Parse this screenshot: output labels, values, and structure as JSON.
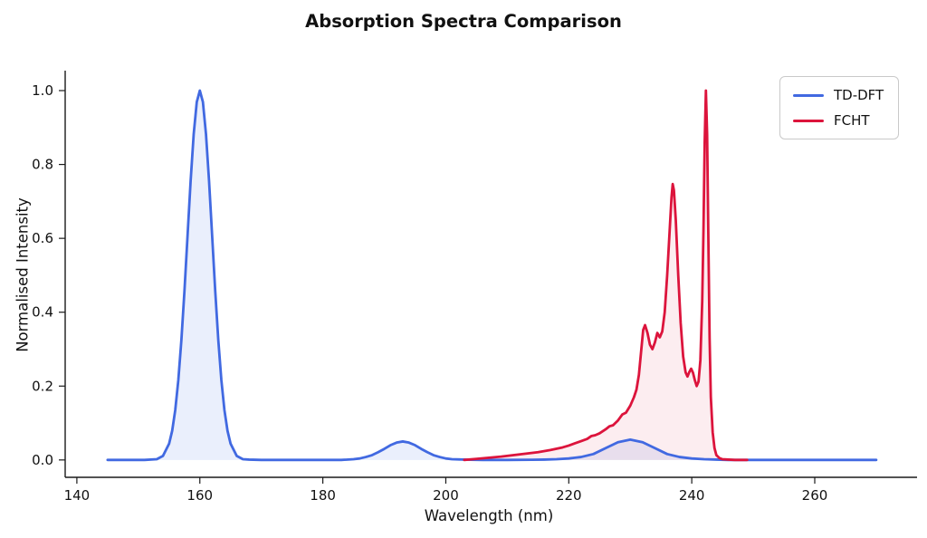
{
  "chart_data": {
    "type": "line",
    "title": "Absorption Spectra Comparison",
    "xlabel": "Wavelength (nm)",
    "ylabel": "Normalised Intensity",
    "xlim": [
      138.1,
      275.9
    ],
    "ylim": [
      -0.047,
      1.054
    ],
    "grid": false,
    "legend_position": "upper right",
    "x_ticks": [
      {
        "value": 140,
        "label": "140"
      },
      {
        "value": 160,
        "label": "160"
      },
      {
        "value": 180,
        "label": "180"
      },
      {
        "value": 200,
        "label": "200"
      },
      {
        "value": 220,
        "label": "220"
      },
      {
        "value": 240,
        "label": "240"
      },
      {
        "value": 260,
        "label": "260"
      }
    ],
    "y_ticks": [
      {
        "value": 0.0,
        "label": "0.0"
      },
      {
        "value": 0.2,
        "label": "0.2"
      },
      {
        "value": 0.4,
        "label": "0.4"
      },
      {
        "value": 0.6,
        "label": "0.6"
      },
      {
        "value": 0.8,
        "label": "0.8"
      },
      {
        "value": 1.0,
        "label": "1.0"
      }
    ],
    "series": [
      {
        "name": "TD-DFT",
        "color": "#4169e1",
        "fill": "rgba(65,105,225,0.11)",
        "points": [
          [
            145,
            0
          ],
          [
            148,
            0
          ],
          [
            151,
            0
          ],
          [
            153,
            0.002
          ],
          [
            154,
            0.011
          ],
          [
            155,
            0.044
          ],
          [
            155.5,
            0.079
          ],
          [
            156,
            0.135
          ],
          [
            156.5,
            0.216
          ],
          [
            157,
            0.325
          ],
          [
            157.5,
            0.458
          ],
          [
            158,
            0.607
          ],
          [
            158.5,
            0.755
          ],
          [
            159,
            0.882
          ],
          [
            159.5,
            0.969
          ],
          [
            160,
            1.0
          ],
          [
            160.5,
            0.969
          ],
          [
            161,
            0.882
          ],
          [
            161.5,
            0.755
          ],
          [
            162,
            0.607
          ],
          [
            162.5,
            0.458
          ],
          [
            163,
            0.325
          ],
          [
            163.5,
            0.216
          ],
          [
            164,
            0.135
          ],
          [
            164.5,
            0.079
          ],
          [
            165,
            0.044
          ],
          [
            166,
            0.011
          ],
          [
            167,
            0.002
          ],
          [
            168,
            0.001
          ],
          [
            170,
            0
          ],
          [
            175,
            0
          ],
          [
            180,
            0
          ],
          [
            183,
            0
          ],
          [
            185,
            0.002
          ],
          [
            186,
            0.004
          ],
          [
            187,
            0.008
          ],
          [
            188,
            0.013
          ],
          [
            189,
            0.021
          ],
          [
            190,
            0.03
          ],
          [
            191,
            0.04
          ],
          [
            192,
            0.047
          ],
          [
            193,
            0.05
          ],
          [
            194,
            0.047
          ],
          [
            195,
            0.04
          ],
          [
            196,
            0.03
          ],
          [
            197,
            0.021
          ],
          [
            198,
            0.013
          ],
          [
            199,
            0.008
          ],
          [
            200,
            0.004
          ],
          [
            201,
            0.002
          ],
          [
            203,
            0.001
          ],
          [
            206,
            0
          ],
          [
            210,
            0
          ],
          [
            214,
            0.0005
          ],
          [
            216,
            0.001
          ],
          [
            218,
            0.002
          ],
          [
            220,
            0.004
          ],
          [
            222,
            0.008
          ],
          [
            224,
            0.016
          ],
          [
            226,
            0.032
          ],
          [
            228,
            0.048
          ],
          [
            230,
            0.055
          ],
          [
            232,
            0.048
          ],
          [
            234,
            0.032
          ],
          [
            236,
            0.016
          ],
          [
            238,
            0.008
          ],
          [
            240,
            0.004
          ],
          [
            242,
            0.002
          ],
          [
            244,
            0.001
          ],
          [
            246,
            0
          ],
          [
            250,
            0
          ],
          [
            255,
            0
          ],
          [
            260,
            0
          ],
          [
            265,
            0
          ],
          [
            270,
            0
          ]
        ]
      },
      {
        "name": "FCHT",
        "color": "#dc143c",
        "fill": "rgba(220,20,60,0.08)",
        "points": [
          [
            203,
            0
          ],
          [
            205,
            0.003
          ],
          [
            207,
            0.006
          ],
          [
            209,
            0.009
          ],
          [
            211,
            0.013
          ],
          [
            213,
            0.017
          ],
          [
            215,
            0.021
          ],
          [
            217,
            0.027
          ],
          [
            219,
            0.034
          ],
          [
            220,
            0.039
          ],
          [
            221,
            0.045
          ],
          [
            222,
            0.051
          ],
          [
            223,
            0.057
          ],
          [
            223.7,
            0.065
          ],
          [
            224.3,
            0.067
          ],
          [
            225,
            0.072
          ],
          [
            226,
            0.083
          ],
          [
            226.6,
            0.091
          ],
          [
            227.2,
            0.094
          ],
          [
            228,
            0.107
          ],
          [
            228.7,
            0.123
          ],
          [
            229.3,
            0.128
          ],
          [
            230,
            0.147
          ],
          [
            230.6,
            0.17
          ],
          [
            231,
            0.19
          ],
          [
            231.4,
            0.23
          ],
          [
            231.8,
            0.3
          ],
          [
            232.1,
            0.352
          ],
          [
            232.4,
            0.365
          ],
          [
            232.8,
            0.344
          ],
          [
            233.2,
            0.312
          ],
          [
            233.6,
            0.3
          ],
          [
            234,
            0.318
          ],
          [
            234.4,
            0.344
          ],
          [
            234.8,
            0.332
          ],
          [
            235.2,
            0.348
          ],
          [
            235.6,
            0.4
          ],
          [
            236,
            0.5
          ],
          [
            236.4,
            0.62
          ],
          [
            236.7,
            0.71
          ],
          [
            236.9,
            0.747
          ],
          [
            237.1,
            0.73
          ],
          [
            237.4,
            0.65
          ],
          [
            237.8,
            0.5
          ],
          [
            238.2,
            0.37
          ],
          [
            238.6,
            0.28
          ],
          [
            239,
            0.237
          ],
          [
            239.3,
            0.226
          ],
          [
            239.6,
            0.238
          ],
          [
            239.9,
            0.247
          ],
          [
            240.2,
            0.236
          ],
          [
            240.5,
            0.216
          ],
          [
            240.8,
            0.2
          ],
          [
            241.1,
            0.212
          ],
          [
            241.4,
            0.27
          ],
          [
            241.7,
            0.43
          ],
          [
            241.9,
            0.62
          ],
          [
            242.1,
            0.86
          ],
          [
            242.3,
            1.0
          ],
          [
            242.5,
            0.88
          ],
          [
            242.7,
            0.6
          ],
          [
            242.9,
            0.33
          ],
          [
            243.1,
            0.17
          ],
          [
            243.4,
            0.075
          ],
          [
            243.7,
            0.032
          ],
          [
            244,
            0.013
          ],
          [
            244.5,
            0.005
          ],
          [
            245,
            0.002
          ],
          [
            246,
            0.001
          ],
          [
            247,
            0
          ],
          [
            248,
            0
          ],
          [
            249,
            0
          ]
        ]
      }
    ]
  }
}
